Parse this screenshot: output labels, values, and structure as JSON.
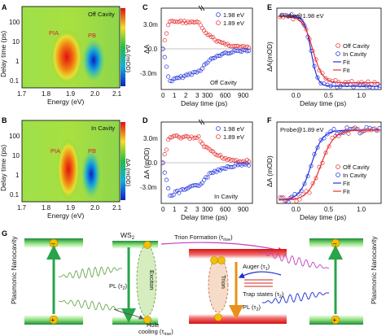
{
  "panels": {
    "A": {
      "letter": "A",
      "condition": "Off Cavity",
      "labels": [
        "PIA",
        "PB"
      ],
      "colorbar": "ΔA (mOD)",
      "xlabel": "Energy (eV)",
      "ylabel": "Delay time (ps)",
      "xticks": [
        "1.7",
        "1.8",
        "1.9",
        "2.0",
        "2.1"
      ],
      "yticks": [
        "0.1",
        "1",
        "10",
        "100"
      ]
    },
    "B": {
      "letter": "B",
      "condition": "In Cavity",
      "labels": [
        "PIA",
        "PB"
      ],
      "colorbar": "ΔA (mOD)",
      "xlabel": "Energy (eV)",
      "ylabel": "Delay time (ps)",
      "xticks": [
        "1.7",
        "1.8",
        "1.9",
        "2.0",
        "2.1"
      ],
      "yticks": [
        "0.1",
        "1",
        "10",
        "100"
      ]
    },
    "C": {
      "letter": "C",
      "condition": "Off Cavity",
      "xlabel": "Delay time (ps)",
      "ylabel": "ΔA",
      "legend": [
        "1.98 eV",
        "1.89 eV"
      ],
      "yticks": [
        "3.0m",
        "0.0",
        "-3.0m"
      ],
      "xticks": [
        "0",
        "1",
        "2",
        "3",
        "300",
        "600",
        "900"
      ]
    },
    "D": {
      "letter": "D",
      "condition": "In Cavity",
      "xlabel": "Delay time (ps)",
      "ylabel": "ΔA (mOD)",
      "legend": [
        "1.98 eV",
        "1.89 eV"
      ],
      "yticks": [
        "3.0m",
        "0.0",
        "-3.0m"
      ],
      "xticks": [
        "0",
        "1",
        "2",
        "3",
        "300",
        "600",
        "900"
      ]
    },
    "E": {
      "letter": "E",
      "probe": "Probe@1.98 eV",
      "xlabel": "Delay time (ps)",
      "ylabel": "ΔA(mOD)",
      "legend": [
        "Off Cavity",
        "In Cavity",
        "Fit",
        "Fit"
      ],
      "xticks": [
        "0.0",
        "0.5",
        "1.0"
      ]
    },
    "F": {
      "letter": "F",
      "probe": "Probe@1.89 eV",
      "xlabel": "Delay time (ps)",
      "ylabel": "ΔA (mOD)",
      "legend": [
        "Off Cavity",
        "In Cavity",
        "Fit",
        "Fit"
      ],
      "xticks": [
        "0.0",
        "0.5",
        "1.0"
      ]
    }
  },
  "schematic": {
    "letter": "G",
    "ws2": "WS",
    "ws2_sub": "2",
    "trion_formation": "Trion Formation (τ",
    "trion_formation_sub": "rise",
    "pl_left": "PL (τ",
    "pl_left_sub": "2",
    "exciton": "Exciton",
    "hole": "Hole",
    "cooling": "cooling (τ",
    "cooling_sub": "rise",
    "auger": "Auger (τ",
    "auger_sub": "1",
    "trion": "Trion",
    "trap": "Trap states (τ",
    "trap_sub": "2",
    "pl_right": "PL (τ",
    "pl_right_sub": "2",
    "nanocavity_left": "Plasmonic Nanocavity",
    "nanocavity_right": "Plasmonic Nanocavity",
    "close": ")"
  },
  "colors": {
    "red": "#e83030",
    "blue": "#2233dd",
    "green": "#2aa34a",
    "orange": "#f0a000"
  }
}
